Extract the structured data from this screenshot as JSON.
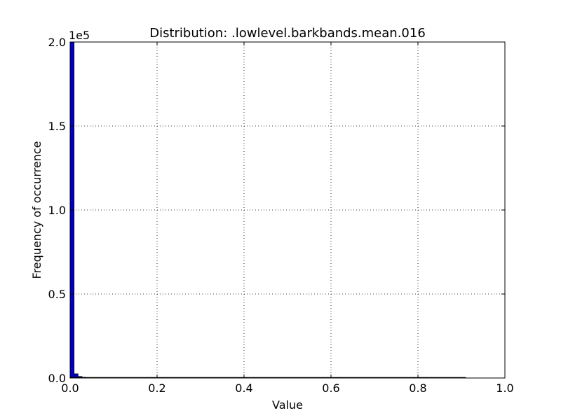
{
  "chart_data": {
    "type": "bar",
    "title": "Distribution: .lowlevel.barkbands.mean.016",
    "xlabel": "Value",
    "ylabel": "Frequency of occurrence",
    "y_multiplier_label": "1e5",
    "xlim": [
      0.0,
      1.0
    ],
    "ylim": [
      0,
      200000
    ],
    "x_ticks": [
      0.0,
      0.2,
      0.4,
      0.6,
      0.8,
      1.0
    ],
    "x_tick_labels": [
      "0.0",
      "0.2",
      "0.4",
      "0.6",
      "0.8",
      "1.0"
    ],
    "y_ticks": [
      0,
      50000,
      100000,
      150000,
      200000
    ],
    "y_tick_labels": [
      "0.0",
      "0.5",
      "1.0",
      "1.5",
      "2.0"
    ],
    "grid": true,
    "bar_color": "#0000cc",
    "bin_width": 0.0091,
    "bins": [
      {
        "x": 0.0,
        "value": 200000
      },
      {
        "x": 0.0091,
        "value": 2500
      },
      {
        "x": 0.0182,
        "value": 900
      },
      {
        "x": 0.0273,
        "value": 400
      },
      {
        "x": 0.0364,
        "value": 200
      },
      {
        "x": 0.0455,
        "value": 100
      },
      {
        "x": 0.0546,
        "value": 60
      },
      {
        "x": 0.0637,
        "value": 40
      },
      {
        "x": 0.0728,
        "value": 20
      },
      {
        "x": 0.0819,
        "value": 10
      },
      {
        "x": 0.091,
        "value": 5
      },
      {
        "x": 0.1001,
        "value": 3
      },
      {
        "x": 0.1092,
        "value": 2
      },
      {
        "x": 0.1183,
        "value": 1
      }
    ],
    "x_max_value": 0.91
  }
}
